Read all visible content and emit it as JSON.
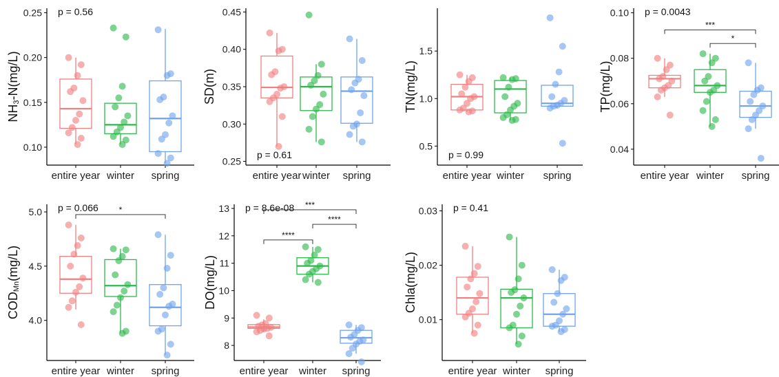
{
  "colors": {
    "entire year": "#F08080",
    "winter": "#2DB84B",
    "spring": "#6FA3EC"
  },
  "chart_data": [
    {
      "type": "box",
      "ylabel": "NH₃-N(mg/L)",
      "ylabel_main": "NH",
      "ylabel_sub": "3",
      "ylabel_rest": "-N(mg/L)",
      "pvalue": "p = 0.56",
      "pvalue_pos": "top-left",
      "ylim": [
        0.08,
        0.255
      ],
      "yticks": [
        0.1,
        0.15,
        0.2,
        0.25
      ],
      "ytick_labels": [
        "0.10",
        "0.15",
        "0.20",
        "0.25"
      ],
      "categories": [
        "entire year",
        "winter",
        "spring"
      ],
      "boxes": [
        {
          "q1": 0.121,
          "median": 0.143,
          "q3": 0.176,
          "whislo": 0.103,
          "whishi": 0.2,
          "points": [
            0.2,
            0.192,
            0.18,
            0.166,
            0.162,
            0.152,
            0.137,
            0.13,
            0.122,
            0.116,
            0.11,
            0.103
          ]
        },
        {
          "q1": 0.115,
          "median": 0.125,
          "q3": 0.149,
          "whislo": 0.103,
          "whishi": 0.149,
          "outliers": [
            0.233,
            0.223
          ],
          "points": [
            0.233,
            0.223,
            0.168,
            0.155,
            0.145,
            0.135,
            0.128,
            0.122,
            0.117,
            0.112,
            0.108,
            0.103
          ]
        },
        {
          "q1": 0.095,
          "median": 0.132,
          "q3": 0.174,
          "whislo": 0.082,
          "whishi": 0.232,
          "points": [
            0.231,
            0.182,
            0.18,
            0.156,
            0.153,
            0.135,
            0.127,
            0.114,
            0.109,
            0.093,
            0.088,
            0.082
          ]
        }
      ],
      "comparisons": []
    },
    {
      "type": "box",
      "ylabel": "SD(m)",
      "pvalue": "p = 0.61",
      "pvalue_pos": "bottom-left",
      "ylim": [
        0.245,
        0.455
      ],
      "yticks": [
        0.25,
        0.3,
        0.35,
        0.4,
        0.45
      ],
      "ytick_labels": [
        "0.25",
        "0.30",
        "0.35",
        "0.40",
        "0.45"
      ],
      "categories": [
        "entire year",
        "winter",
        "spring"
      ],
      "boxes": [
        {
          "q1": 0.335,
          "median": 0.349,
          "q3": 0.391,
          "whislo": 0.27,
          "whishi": 0.422,
          "points": [
            0.422,
            0.4,
            0.398,
            0.37,
            0.366,
            0.35,
            0.348,
            0.34,
            0.335,
            0.33,
            0.31,
            0.27
          ]
        },
        {
          "q1": 0.318,
          "median": 0.35,
          "q3": 0.363,
          "whislo": 0.276,
          "whishi": 0.38,
          "outliers": [
            0.446
          ],
          "points": [
            0.446,
            0.38,
            0.365,
            0.358,
            0.352,
            0.34,
            0.326,
            0.32,
            0.31,
            0.293,
            0.276
          ]
        },
        {
          "q1": 0.301,
          "median": 0.344,
          "q3": 0.363,
          "whislo": 0.276,
          "whishi": 0.414,
          "points": [
            0.414,
            0.385,
            0.36,
            0.355,
            0.346,
            0.338,
            0.315,
            0.3,
            0.297,
            0.286,
            0.276
          ]
        }
      ],
      "comparisons": []
    },
    {
      "type": "box",
      "ylabel": "TN(mg/L)",
      "pvalue": "p = 0.99",
      "pvalue_pos": "bottom-left",
      "ylim": [
        0.3,
        1.95
      ],
      "yticks": [
        0.5,
        1.0,
        1.5
      ],
      "ytick_labels": [
        "0.5",
        "1.0",
        "1.5"
      ],
      "categories": [
        "entire year",
        "winter",
        "spring"
      ],
      "boxes": [
        {
          "q1": 0.88,
          "median": 1.02,
          "q3": 1.15,
          "whislo": 0.86,
          "whishi": 1.25,
          "points": [
            1.25,
            1.22,
            1.18,
            1.12,
            1.05,
            1.02,
            1.0,
            0.95,
            0.9,
            0.88,
            0.87,
            0.86
          ]
        },
        {
          "q1": 0.85,
          "median": 1.1,
          "q3": 1.19,
          "whislo": 0.77,
          "whishi": 1.22,
          "points": [
            1.22,
            1.21,
            1.2,
            1.12,
            1.02,
            0.95,
            0.92,
            0.88,
            0.83,
            0.8,
            0.78,
            0.77
          ]
        },
        {
          "q1": 0.92,
          "median": 0.95,
          "q3": 1.14,
          "whislo": 0.9,
          "whishi": 1.15,
          "outliers": [
            1.85,
            1.55,
            0.53
          ],
          "points": [
            1.85,
            1.55,
            1.28,
            1.15,
            1.02,
            0.98,
            0.95,
            0.93,
            0.92,
            0.9,
            0.53
          ]
        }
      ],
      "comparisons": []
    },
    {
      "type": "box",
      "ylabel": "TP(mg/L)",
      "pvalue": "p = 0.0043",
      "pvalue_pos": "top-left",
      "ylim": [
        0.033,
        0.102
      ],
      "yticks": [
        0.04,
        0.06,
        0.08,
        0.1
      ],
      "ytick_labels": [
        "0.04",
        "0.06",
        "0.08",
        "0.10"
      ],
      "categories": [
        "entire year",
        "winter",
        "spring"
      ],
      "boxes": [
        {
          "q1": 0.067,
          "median": 0.071,
          "q3": 0.0725,
          "whislo": 0.063,
          "whishi": 0.08,
          "outliers": [
            0.055
          ],
          "points": [
            0.08,
            0.077,
            0.075,
            0.072,
            0.071,
            0.07,
            0.068,
            0.067,
            0.066,
            0.063,
            0.055
          ]
        },
        {
          "q1": 0.065,
          "median": 0.068,
          "q3": 0.075,
          "whislo": 0.05,
          "whishi": 0.082,
          "points": [
            0.082,
            0.08,
            0.078,
            0.072,
            0.07,
            0.068,
            0.066,
            0.065,
            0.061,
            0.057,
            0.053,
            0.05
          ]
        },
        {
          "q1": 0.054,
          "median": 0.059,
          "q3": 0.0655,
          "whislo": 0.049,
          "whishi": 0.078,
          "outliers": [
            0.036
          ],
          "points": [
            0.078,
            0.067,
            0.066,
            0.064,
            0.061,
            0.059,
            0.057,
            0.055,
            0.053,
            0.049,
            0.036
          ]
        }
      ],
      "comparisons": [
        {
          "from": 0,
          "to": 2,
          "label": "***",
          "y": 0.0925
        },
        {
          "from": 1,
          "to": 2,
          "label": "*",
          "y": 0.0865
        }
      ]
    },
    {
      "type": "box",
      "ylabel": "COD_Mn(mg/L)",
      "ylabel_main": "COD",
      "ylabel_sub": "Mn",
      "ylabel_rest": "(mg/L)",
      "pvalue": "p = 0.066",
      "pvalue_pos": "top-left",
      "ylim": [
        3.63,
        5.07
      ],
      "yticks": [
        4.0,
        4.5,
        5.0
      ],
      "ytick_labels": [
        "4.0",
        "4.5",
        "5.0"
      ],
      "categories": [
        "entire year",
        "winter",
        "spring"
      ],
      "boxes": [
        {
          "q1": 4.25,
          "median": 4.38,
          "q3": 4.59,
          "whislo": 4.1,
          "whishi": 4.88,
          "outliers": [
            3.96
          ],
          "points": [
            4.88,
            4.76,
            4.69,
            4.61,
            4.5,
            4.39,
            4.31,
            4.26,
            4.18,
            4.12,
            3.96
          ]
        },
        {
          "q1": 4.22,
          "median": 4.32,
          "q3": 4.56,
          "whislo": 3.88,
          "whishi": 4.66,
          "points": [
            4.66,
            4.65,
            4.59,
            4.55,
            4.42,
            4.33,
            4.27,
            4.21,
            4.14,
            4.08,
            3.9,
            3.88
          ]
        },
        {
          "q1": 3.95,
          "median": 4.12,
          "q3": 4.33,
          "whislo": 3.68,
          "whishi": 4.79,
          "points": [
            4.79,
            4.6,
            4.48,
            4.3,
            4.24,
            4.15,
            4.13,
            4.05,
            3.92,
            3.9,
            3.78,
            3.68
          ]
        }
      ],
      "comparisons": [
        {
          "from": 0,
          "to": 2,
          "label": "*",
          "y": 4.975
        }
      ]
    },
    {
      "type": "box",
      "ylabel": "DO(mg/L)",
      "pvalue": "p = 8.6e-08",
      "pvalue_pos": "top-left",
      "ylim": [
        7.45,
        13.15
      ],
      "yticks": [
        8,
        9,
        10,
        11,
        12,
        13
      ],
      "ytick_labels": [
        "8",
        "9",
        "10",
        "11",
        "12",
        "13"
      ],
      "categories": [
        "entire year",
        "winter",
        "spring"
      ],
      "boxes": [
        {
          "q1": 8.62,
          "median": 8.67,
          "q3": 8.76,
          "whislo": 8.5,
          "whishi": 8.95,
          "outliers": [
            9.1,
            8.35
          ],
          "points": [
            9.1,
            9.0,
            8.8,
            8.75,
            8.7,
            8.66,
            8.62,
            8.6,
            8.55,
            8.5,
            8.35
          ]
        },
        {
          "q1": 10.6,
          "median": 10.9,
          "q3": 11.2,
          "whislo": 10.3,
          "whishi": 11.6,
          "points": [
            11.6,
            11.5,
            11.3,
            11.1,
            11.0,
            10.9,
            10.8,
            10.7,
            10.6,
            10.4,
            10.3
          ]
        },
        {
          "q1": 8.08,
          "median": 8.28,
          "q3": 8.55,
          "whislo": 7.7,
          "whishi": 8.75,
          "outliers": [
            7.4
          ],
          "points": [
            8.75,
            8.65,
            8.55,
            8.4,
            8.3,
            8.2,
            8.15,
            8.05,
            7.9,
            7.7,
            7.4
          ]
        }
      ],
      "comparisons": [
        {
          "from": 0,
          "to": 1,
          "label": "****",
          "y": 11.85
        },
        {
          "from": 1,
          "to": 2,
          "label": "****",
          "y": 12.42
        },
        {
          "from": 0,
          "to": 2,
          "label": "***",
          "y": 12.95,
          "label_x": 1.0
        }
      ]
    },
    {
      "type": "box",
      "ylabel": "Chla(mg/L)",
      "pvalue": "p = 0.41",
      "pvalue_pos": "top-left",
      "ylim": [
        0.0025,
        0.0312
      ],
      "yticks": [
        0.01,
        0.02,
        0.03
      ],
      "ytick_labels": [
        "0.01",
        "0.02",
        "0.03"
      ],
      "categories": [
        "entire year",
        "winter",
        "spring"
      ],
      "boxes": [
        {
          "q1": 0.011,
          "median": 0.014,
          "q3": 0.0178,
          "whislo": 0.0075,
          "whishi": 0.0235,
          "points": [
            0.0235,
            0.0198,
            0.0185,
            0.0175,
            0.016,
            0.0148,
            0.0133,
            0.012,
            0.0112,
            0.0105,
            0.009,
            0.0075
          ]
        },
        {
          "q1": 0.0085,
          "median": 0.014,
          "q3": 0.0156,
          "whislo": 0.0055,
          "whishi": 0.0252,
          "points": [
            0.0252,
            0.02,
            0.0175,
            0.0155,
            0.015,
            0.014,
            0.0125,
            0.011,
            0.009,
            0.0085,
            0.007,
            0.0055
          ]
        },
        {
          "q1": 0.0088,
          "median": 0.011,
          "q3": 0.0148,
          "whislo": 0.0078,
          "whishi": 0.0192,
          "points": [
            0.0192,
            0.0178,
            0.0172,
            0.0148,
            0.0132,
            0.012,
            0.011,
            0.0098,
            0.009,
            0.0088,
            0.0082,
            0.0078
          ]
        }
      ],
      "comparisons": []
    }
  ]
}
